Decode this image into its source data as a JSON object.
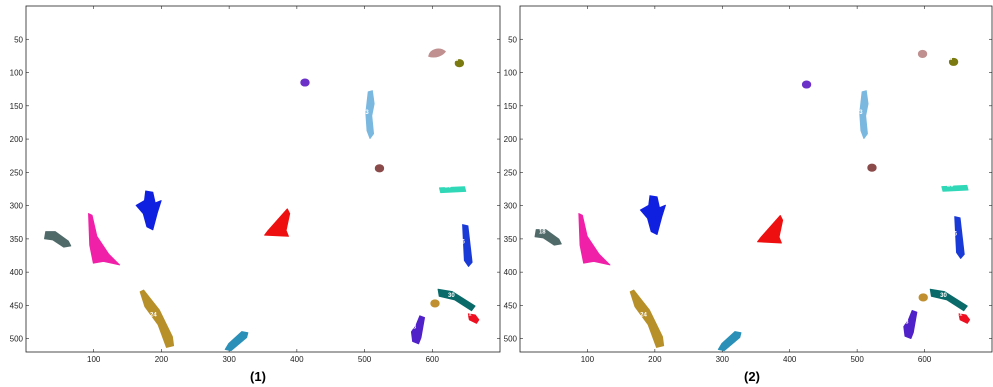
{
  "figure": {
    "x_ticks": [
      "100",
      "200",
      "300",
      "400",
      "500",
      "600"
    ],
    "y_ticks": [
      "50",
      "100",
      "150",
      "200",
      "250",
      "300",
      "350",
      "400",
      "450",
      "500"
    ],
    "panels": [
      {
        "caption": "(1)",
        "objects": [
          {
            "label": "",
            "color": "#c09090",
            "shape": "blob",
            "x": 607,
            "y": 72
          },
          {
            "label": "18",
            "color": "#7a7a10",
            "shape": "round",
            "x": 640,
            "y": 86
          },
          {
            "label": "5",
            "color": "#6a30c8",
            "shape": "round",
            "x": 412,
            "y": 115
          },
          {
            "label": "23",
            "color": "#7ab8e0",
            "shape": "tall",
            "x": 508,
            "y": 165
          },
          {
            "label": "",
            "color": "#8a4a4a",
            "shape": "round",
            "x": 522,
            "y": 244
          },
          {
            "label": "25",
            "color": "#30d8b8",
            "shape": "bar",
            "x": 630,
            "y": 276
          },
          {
            "label": "",
            "color": "#1020e0",
            "shape": "cross",
            "x": 182,
            "y": 305
          },
          {
            "label": "26",
            "color": "#1a3ad8",
            "shape": "vbar",
            "x": 650,
            "y": 360
          },
          {
            "label": "",
            "color": "#f020a8",
            "shape": "ptri",
            "x": 110,
            "y": 355
          },
          {
            "label": "",
            "color": "#ee1010",
            "shape": "tri",
            "x": 370,
            "y": 330
          },
          {
            "label": "",
            "color": "#506a6a",
            "shape": "hbar",
            "x": 45,
            "y": 348
          },
          {
            "label": "24",
            "color": "#b8902a",
            "shape": "diag",
            "x": 195,
            "y": 470
          },
          {
            "label": "30",
            "color": "#0a6a6a",
            "shape": "dbar",
            "x": 635,
            "y": 440
          },
          {
            "label": "",
            "color": "#c09030",
            "shape": "round",
            "x": 604,
            "y": 447
          },
          {
            "label": "31",
            "color": "#ee1020",
            "shape": "small",
            "x": 660,
            "y": 468
          },
          {
            "label": "28",
            "color": "#5020c8",
            "shape": "vbar2",
            "x": 578,
            "y": 488
          },
          {
            "label": "",
            "color": "#2a90b8",
            "shape": "ldiag",
            "x": 310,
            "y": 500
          }
        ]
      },
      {
        "caption": "(2)",
        "objects": [
          {
            "label": "",
            "color": "#c09090",
            "shape": "round",
            "x": 597,
            "y": 72
          },
          {
            "label": "18",
            "color": "#7a7a10",
            "shape": "round",
            "x": 643,
            "y": 84
          },
          {
            "label": "5",
            "color": "#6a30c8",
            "shape": "round",
            "x": 425,
            "y": 118
          },
          {
            "label": "23",
            "color": "#7ab8e0",
            "shape": "tall",
            "x": 510,
            "y": 165
          },
          {
            "label": "",
            "color": "#8a4a4a",
            "shape": "round",
            "x": 522,
            "y": 243
          },
          {
            "label": "25",
            "color": "#30d8b8",
            "shape": "bar",
            "x": 645,
            "y": 274
          },
          {
            "label": "",
            "color": "#1020e0",
            "shape": "cross",
            "x": 198,
            "y": 312
          },
          {
            "label": "26",
            "color": "#1a3ad8",
            "shape": "vbar",
            "x": 650,
            "y": 348
          },
          {
            "label": "",
            "color": "#f020a8",
            "shape": "ptri",
            "x": 105,
            "y": 355
          },
          {
            "label": "",
            "color": "#ee1010",
            "shape": "tri",
            "x": 370,
            "y": 340
          },
          {
            "label": "18",
            "color": "#506a6a",
            "shape": "hbar",
            "x": 40,
            "y": 345
          },
          {
            "label": "24",
            "color": "#b8902a",
            "shape": "diag",
            "x": 190,
            "y": 470
          },
          {
            "label": "30",
            "color": "#0a6a6a",
            "shape": "dbar",
            "x": 635,
            "y": 440
          },
          {
            "label": "",
            "color": "#c09030",
            "shape": "round",
            "x": 598,
            "y": 438
          },
          {
            "label": "31",
            "color": "#ee1020",
            "shape": "small",
            "x": 658,
            "y": 468
          },
          {
            "label": "28",
            "color": "#5020c8",
            "shape": "vbar2",
            "x": 578,
            "y": 480
          },
          {
            "label": "",
            "color": "#2a90b8",
            "shape": "ldiag",
            "x": 310,
            "y": 500
          }
        ]
      }
    ]
  }
}
